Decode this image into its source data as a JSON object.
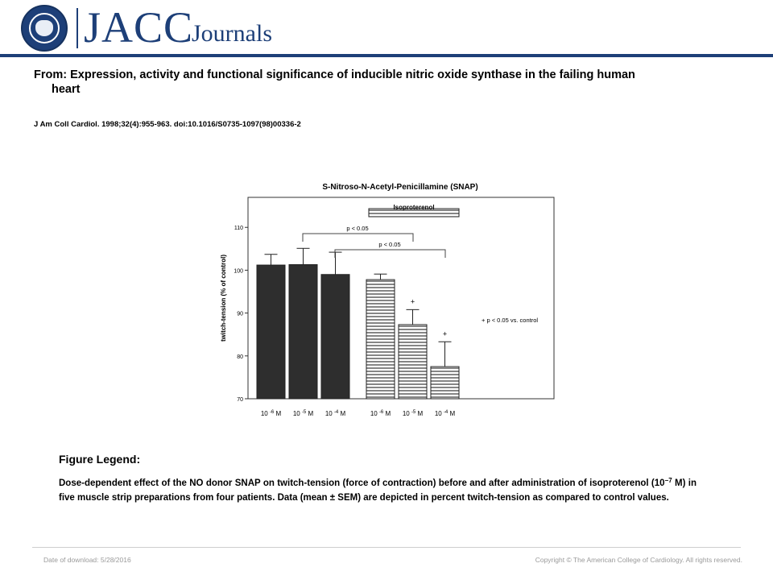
{
  "header": {
    "brand": "JACC",
    "brand_sub": "Journals",
    "seal_text": "AMERICAN COLLEGE OF CARDIOLOGY"
  },
  "article": {
    "title_line1": "From: Expression, activity and functional significance of inducible nitric oxide synthase in the failing human",
    "title_line2": "heart",
    "citation": "J Am Coll Cardiol. 1998;32(4):955-963. doi:10.1016/S0735-1097(98)00336-2"
  },
  "chart_data": {
    "type": "bar",
    "title": "S-Nitroso-N-Acetyl-Penicillamine (SNAP)",
    "ylabel": "twitch-tension (% of control)",
    "ylim": [
      70,
      117
    ],
    "yticks": [
      70,
      80,
      90,
      100,
      110
    ],
    "categories": [
      "10 -6 M",
      "10 -5 M",
      "10 -4 M",
      "10 -6 M",
      "10 -5 M",
      "10 -4 M"
    ],
    "values": [
      101.2,
      101.3,
      99.0,
      97.8,
      87.3,
      77.5
    ],
    "errors": [
      2.5,
      3.8,
      5.2,
      1.3,
      3.5,
      5.8
    ],
    "markers": [
      "",
      "",
      "",
      "",
      "+",
      "+"
    ],
    "group_label": "Isoproterenol",
    "brackets": [
      "p < 0.05",
      "p < 0.05"
    ],
    "annotation": "+  p < 0.05 vs. control",
    "colors": {
      "dark_bar": "#2e2e2e",
      "hatch_line": "#222222",
      "bracket": "#444444"
    }
  },
  "legend": {
    "heading": "Figure Legend:",
    "text_before": "Dose-dependent effect of the NO donor SNAP on twitch-tension (force of contraction) before and after administration of isoproterenol (10",
    "exponent": "−7",
    "text_after": " M) in five muscle strip preparations from four patients. Data (mean ± SEM) are depicted in percent twitch-tension as compared to control values."
  },
  "footer": {
    "date": "Date of download:  5/28/2016",
    "copyright": "Copyright © The American College of Cardiology. All rights reserved."
  }
}
